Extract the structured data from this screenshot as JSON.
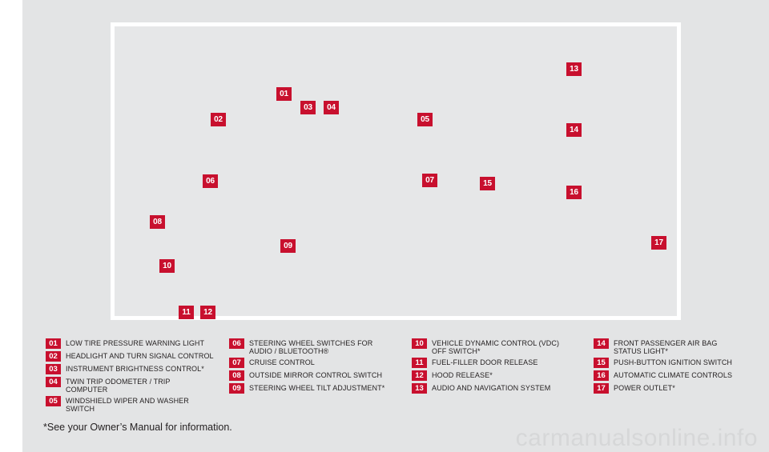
{
  "callouts": [
    {
      "num": "01"
    },
    {
      "num": "02"
    },
    {
      "num": "03"
    },
    {
      "num": "04"
    },
    {
      "num": "05"
    },
    {
      "num": "06"
    },
    {
      "num": "07"
    },
    {
      "num": "08"
    },
    {
      "num": "09"
    },
    {
      "num": "10"
    },
    {
      "num": "11"
    },
    {
      "num": "12"
    },
    {
      "num": "13"
    },
    {
      "num": "14"
    },
    {
      "num": "15"
    },
    {
      "num": "16"
    },
    {
      "num": "17"
    }
  ],
  "legend": {
    "col1": [
      {
        "num": "01",
        "text": "LOW TIRE PRESSURE WARNING LIGHT"
      },
      {
        "num": "02",
        "text": "HEADLIGHT AND TURN SIGNAL CONTROL"
      },
      {
        "num": "03",
        "text": "INSTRUMENT BRIGHTNESS CONTROL*"
      },
      {
        "num": "04",
        "text": "TWIN TRIP ODOMETER / TRIP COMPUTER"
      },
      {
        "num": "05",
        "text": "WINDSHIELD WIPER AND WASHER SWITCH"
      }
    ],
    "col2": [
      {
        "num": "06",
        "text": "STEERING WHEEL SWITCHES FOR AUDIO / BLUETOOTH®"
      },
      {
        "num": "07",
        "text": "CRUISE CONTROL"
      },
      {
        "num": "08",
        "text": "OUTSIDE MIRROR CONTROL SWITCH"
      },
      {
        "num": "09",
        "text": "STEERING WHEEL TILT ADJUSTMENT*"
      }
    ],
    "col3": [
      {
        "num": "10",
        "text": "VEHICLE DYNAMIC CONTROL (VDC) OFF SWITCH*"
      },
      {
        "num": "11",
        "text": "FUEL-FILLER DOOR RELEASE"
      },
      {
        "num": "12",
        "text": "HOOD RELEASE*"
      },
      {
        "num": "13",
        "text": "AUDIO AND NAVIGATION SYSTEM"
      }
    ],
    "col4": [
      {
        "num": "14",
        "text": "FRONT PASSENGER AIR BAG STATUS LIGHT*"
      },
      {
        "num": "15",
        "text": "PUSH-BUTTON IGNITION SWITCH"
      },
      {
        "num": "16",
        "text": "AUTOMATIC CLIMATE CONTROLS"
      },
      {
        "num": "17",
        "text": "POWER OUTLET*"
      }
    ]
  },
  "footnote": "*See your Owner’s Manual for information.",
  "watermark": "carmanualsonline.info",
  "colors": {
    "accent": "#c8102e",
    "panel": "#e3e4e5",
    "text": "#231f20"
  }
}
